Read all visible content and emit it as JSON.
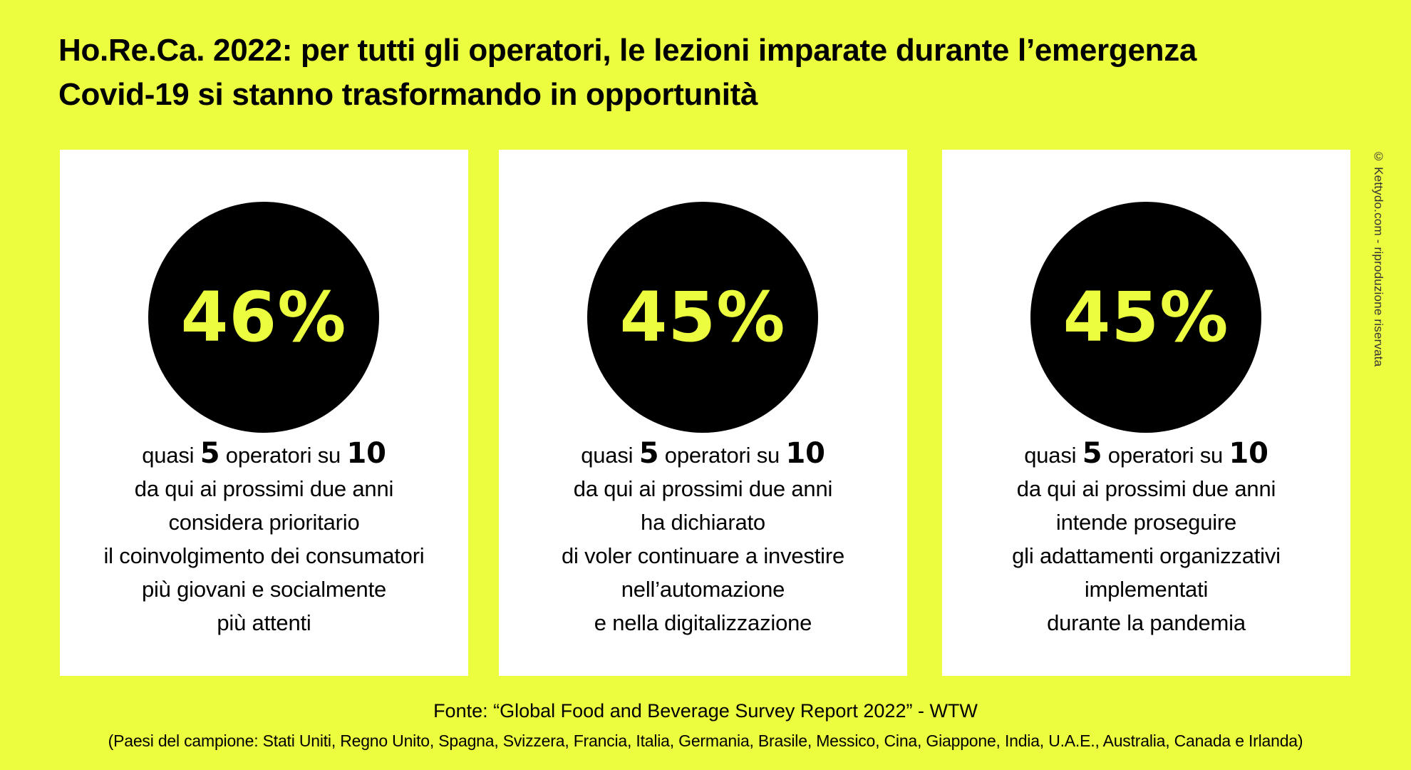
{
  "title": {
    "line1": "Ho.Re.Ca. 2022: per tutti gli operatori, le lezioni imparate durante l’emergenza",
    "line2": "Covid-19 si stanno trasformando in opportunità"
  },
  "cards": [
    {
      "percent": "46%",
      "lead": {
        "pre": "quasi ",
        "n1": "5",
        "mid": " operatori su ",
        "n2": "10"
      },
      "lines": [
        "da qui ai prossimi due anni",
        "considera prioritario",
        "il coinvolgimento dei consumatori",
        "più giovani e socialmente",
        "più attenti"
      ]
    },
    {
      "percent": "45%",
      "lead": {
        "pre": "quasi ",
        "n1": "5",
        "mid": " operatori su ",
        "n2": "10"
      },
      "lines": [
        "da qui ai prossimi due anni",
        "ha dichiarato",
        "di voler continuare a investire",
        "nell’automazione",
        "e nella digitalizzazione"
      ]
    },
    {
      "percent": "45%",
      "lead": {
        "pre": "quasi ",
        "n1": "5",
        "mid": " operatori su ",
        "n2": "10"
      },
      "lines": [
        "da qui ai prossimi due anni",
        "intende proseguire",
        "gli adattamenti organizzativi",
        "implementati",
        "durante la pandemia"
      ]
    }
  ],
  "watermark": "© Kettydo.com - riproduzione riservata",
  "source": "Fonte: “Global Food and Beverage Survey Report 2022” - WTW",
  "countries": "(Paesi del campione: Stati Uniti, Regno Unito, Spagna, Svizzera, Francia, Italia, Germania, Brasile, Messico, Cina, Giappone, India, U.A.E., Australia, Canada e Irlanda)",
  "colors": {
    "background": "#ecfc3f",
    "accent": "#ecfc3f",
    "circle": "#000000",
    "card": "#ffffff"
  }
}
